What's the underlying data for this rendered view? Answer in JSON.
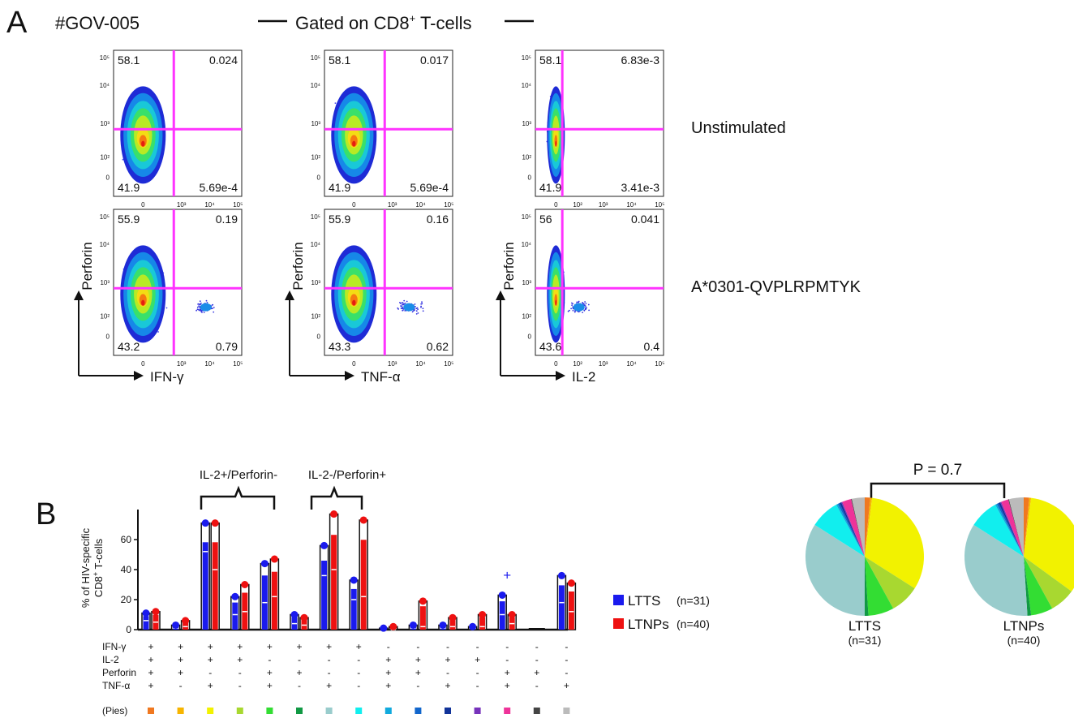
{
  "panel_a": {
    "letter": "A",
    "donor": "#GOV-005",
    "gate_prefix": "Gated on CD8",
    "gate_sup": "+",
    "gate_suffix": " T-cells",
    "row_labels": [
      "Unstimulated",
      "A*0301-QVPLRPMTYK"
    ],
    "y_axis_label": "Perforin",
    "x_axis_labels": [
      "IFN-γ",
      "TNF-α",
      "IL-2"
    ],
    "y_ticks": [
      "10⁵",
      "10⁴",
      "10³",
      "10²",
      "0"
    ],
    "x_ticks": [
      [
        "0",
        "10³",
        "10⁴",
        "10⁵"
      ],
      [
        "0",
        "10³",
        "10⁴",
        "10⁵"
      ],
      [
        "0",
        "10²",
        "10³",
        "10⁴",
        "10⁵"
      ]
    ],
    "plots": [
      {
        "row": 0,
        "col": 0,
        "quadrants": {
          "ul": "58.1",
          "ur": "0.024",
          "ll": "41.9",
          "lr": "5.69e-4"
        },
        "positive_cluster": false
      },
      {
        "row": 0,
        "col": 1,
        "quadrants": {
          "ul": "58.1",
          "ur": "0.017",
          "ll": "41.9",
          "lr": "5.69e-4"
        },
        "positive_cluster": false
      },
      {
        "row": 0,
        "col": 2,
        "quadrants": {
          "ul": "58.1",
          "ur": "6.83e-3",
          "ll": "41.9",
          "lr": "3.41e-3"
        },
        "positive_cluster": false
      },
      {
        "row": 1,
        "col": 0,
        "quadrants": {
          "ul": "55.9",
          "ur": "0.19",
          "ll": "43.2",
          "lr": "0.79"
        },
        "positive_cluster": true
      },
      {
        "row": 1,
        "col": 1,
        "quadrants": {
          "ul": "55.9",
          "ur": "0.16",
          "ll": "43.3",
          "lr": "0.62"
        },
        "positive_cluster": true
      },
      {
        "row": 1,
        "col": 2,
        "quadrants": {
          "ul": "56",
          "ur": "0.041",
          "ll": "43.6",
          "lr": "0.4"
        },
        "positive_cluster": true
      }
    ],
    "gate_color": "#ff33ff"
  },
  "panel_b": {
    "letter": "B",
    "y_label_line1": "% of HIV-specific",
    "y_label_line2_prefix": "CD8",
    "y_label_line2_sup": "+",
    "y_label_line2_suffix": " T-cells",
    "bracket_left": "IL-2+/Perforin-",
    "bracket_right": "IL-2-/Perforin+",
    "pies_label": "(Pies)",
    "p_value": "P = 0.7",
    "marker_rows": [
      "IFN-γ",
      "IL-2",
      "Perforin",
      "TNF-α"
    ],
    "outlier_mark": "+"
  },
  "legend": [
    {
      "name": "LTTS",
      "n": "(n=31)",
      "color": "#1a1aee"
    },
    {
      "name": "LTNPs",
      "n": "(n=40)",
      "color": "#ee1111"
    }
  ],
  "pies": [
    {
      "name": "LTTS",
      "n": "(n=31)"
    },
    {
      "name": "LTNPs",
      "n": "(n=40)"
    }
  ],
  "chart_data": [
    {
      "type": "bar",
      "title": "",
      "ylabel": "% of HIV-specific CD8+ T-cells",
      "ylim": [
        0,
        80
      ],
      "yticks": [
        0,
        20,
        40,
        60
      ],
      "grid": false,
      "categories": [
        "IFN-γ+ IL-2+ Perforin+ TNF-α+",
        "IFN-γ+ IL-2+ Perforin+ TNF-α-",
        "IFN-γ+ IL-2+ Perforin- TNF-α+",
        "IFN-γ+ IL-2+ Perforin- TNF-α-",
        "IFN-γ+ IL-2- Perforin+ TNF-α+",
        "IFN-γ+ IL-2- Perforin+ TNF-α-",
        "IFN-γ+ IL-2- Perforin- TNF-α+",
        "IFN-γ+ IL-2- Perforin- TNF-α-",
        "IFN-γ- IL-2+ Perforin+ TNF-α+",
        "IFN-γ- IL-2+ Perforin+ TNF-α-",
        "IFN-γ- IL-2+ Perforin- TNF-α+",
        "IFN-γ- IL-2+ Perforin- TNF-α-",
        "IFN-γ- IL-2- Perforin+ TNF-α+",
        "IFN-γ- IL-2- Perforin+ TNF-α-",
        "IFN-γ- IL-2- Perforin- TNF-α+"
      ],
      "marker_table": [
        [
          "+",
          "+",
          "+",
          "+",
          "+",
          "+",
          "+",
          "+",
          "-",
          "-",
          "-",
          "-",
          "-",
          "-",
          "-"
        ],
        [
          "+",
          "+",
          "+",
          "+",
          "-",
          "-",
          "-",
          "-",
          "+",
          "+",
          "+",
          "+",
          "-",
          "-",
          "-"
        ],
        [
          "+",
          "+",
          "-",
          "-",
          "+",
          "+",
          "-",
          "-",
          "+",
          "+",
          "-",
          "-",
          "+",
          "+",
          "-"
        ],
        [
          "+",
          "-",
          "+",
          "-",
          "+",
          "-",
          "+",
          "-",
          "+",
          "-",
          "+",
          "-",
          "+",
          "-",
          "+"
        ]
      ],
      "pie_colors": [
        "#f07820",
        "#f7b500",
        "#f2f200",
        "#a8d830",
        "#33dd33",
        "#119944",
        "#99cccc",
        "#11eeee",
        "#11aadd",
        "#1166cc",
        "#113399",
        "#7733bb",
        "#ee3399",
        "#444444",
        "#bbbbbb"
      ],
      "series": [
        {
          "name": "LTTS",
          "max": [
            11,
            3,
            71,
            22,
            44,
            10,
            56,
            33,
            1,
            3,
            3,
            2,
            23,
            0,
            36
          ],
          "min": [
            0,
            0,
            0,
            0,
            0,
            0,
            0,
            0,
            0,
            0,
            0,
            0,
            0,
            0,
            0
          ],
          "median": [
            6,
            1,
            52,
            10,
            18,
            4,
            36,
            20,
            0,
            1,
            1,
            1,
            10,
            0,
            18
          ]
        },
        {
          "name": "LTNPs",
          "max": [
            12,
            6,
            71,
            30,
            47,
            8,
            77,
            73,
            2,
            19,
            8,
            10,
            10,
            0,
            31
          ],
          "min": [
            0,
            0,
            0,
            0,
            0,
            0,
            0,
            0,
            0,
            0,
            0,
            0,
            0,
            0,
            0
          ],
          "median": [
            5,
            2,
            40,
            12,
            22,
            3,
            40,
            22,
            0,
            2,
            2,
            2,
            4,
            0,
            12
          ]
        }
      ],
      "outliers": [
        {
          "series": "LTTS",
          "category_index": 12,
          "value": 36
        }
      ]
    },
    {
      "type": "pie",
      "title": "LTTS (n=31)",
      "labels": [
        "IFN-γ+ IL-2+ Perforin+ TNF-α+",
        "IFN-γ+ IL-2+ Perforin+ TNF-α-",
        "IFN-γ+ IL-2+ Perforin- TNF-α+",
        "IFN-γ+ IL-2+ Perforin- TNF-α-",
        "IFN-γ+ IL-2- Perforin+ TNF-α+",
        "IFN-γ+ IL-2- Perforin+ TNF-α-",
        "IFN-γ+ IL-2- Perforin- TNF-α+",
        "IFN-γ+ IL-2- Perforin- TNF-α-",
        "IFN-γ- IL-2+ Perforin+ TNF-α+",
        "IFN-γ- IL-2+ Perforin+ TNF-α-",
        "IFN-γ- IL-2+ Perforin- TNF-α+",
        "IFN-γ- IL-2+ Perforin- TNF-α-",
        "IFN-γ- IL-2- Perforin+ TNF-α+",
        "IFN-γ- IL-2- Perforin+ TNF-α-",
        "IFN-γ- IL-2- Perforin- TNF-α+"
      ],
      "values": [
        1.5,
        0.5,
        32,
        8,
        7,
        1,
        34,
        8,
        0.5,
        0.5,
        0.5,
        0.3,
        2.5,
        0.2,
        3.5
      ]
    },
    {
      "type": "pie",
      "title": "LTNPs (n=40)",
      "labels": [
        "IFN-γ+ IL-2+ Perforin+ TNF-α+",
        "IFN-γ+ IL-2+ Perforin+ TNF-α-",
        "IFN-γ+ IL-2+ Perforin- TNF-α+",
        "IFN-γ+ IL-2+ Perforin- TNF-α-",
        "IFN-γ+ IL-2- Perforin+ TNF-α+",
        "IFN-γ+ IL-2- Perforin+ TNF-α-",
        "IFN-γ+ IL-2- Perforin- TNF-α+",
        "IFN-γ+ IL-2- Perforin- TNF-α-",
        "IFN-γ- IL-2+ Perforin+ TNF-α+",
        "IFN-γ- IL-2+ Perforin+ TNF-α-",
        "IFN-γ- IL-2+ Perforin- TNF-α+",
        "IFN-γ- IL-2+ Perforin- TNF-α-",
        "IFN-γ- IL-2- Perforin+ TNF-α+",
        "IFN-γ- IL-2- Perforin+ TNF-α-",
        "IFN-γ- IL-2- Perforin- TNF-α+"
      ],
      "values": [
        1.5,
        0.5,
        33,
        7,
        6,
        1,
        35,
        8,
        0.5,
        0.5,
        0.5,
        0.3,
        2,
        0.2,
        4
      ]
    }
  ]
}
